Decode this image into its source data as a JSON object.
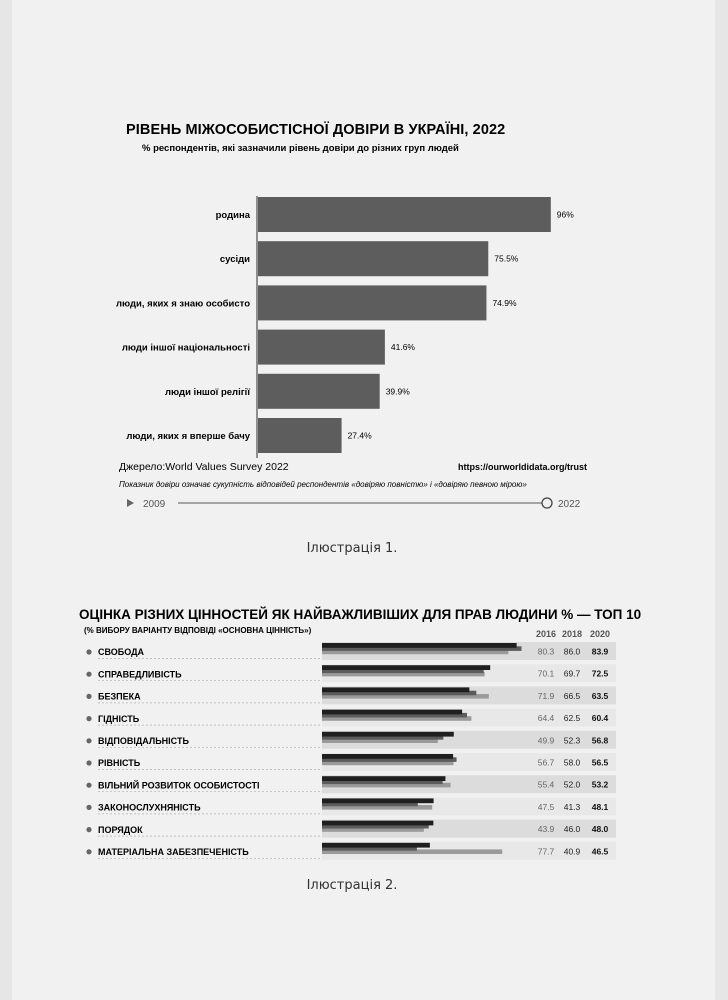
{
  "figure1": {
    "title": "РІВЕНЬ МІЖОСОБИСТІСНОЇ ДОВІРИ В УКРАЇНІ, 2022",
    "subtitle": "% респондентів, які зазначили рівень довіри до різних груп людей",
    "source": "Джерело:World Values Survey 2022",
    "url": "https://ourworldidata.org/trust",
    "note": "Показник довіри означає сукупність відповідей респондентів «довіряю повністю» і «довіряю певною мірою»",
    "timeline": {
      "start": "2009",
      "end": "2022"
    },
    "caption": "Ілюстрація 1.",
    "bar_color": "#5d5d5d"
  },
  "figure2": {
    "title": "ОЦІНКА РІЗНИХ ЦІННОСТЕЙ ЯК НАЙВАЖЛИВІШИХ ДЛЯ ПРАВ ЛЮДИНИ % — ТОП 10",
    "subtitle": "(% ВИБОРУ ВАРІАНТУ ВІДПОВІДІ «ОСНОВНА ЦІННІСТЬ»)",
    "caption": "Ілюстрація 2.",
    "series_colors": [
      "#9a9a9a",
      "#5c5c5c",
      "#1f1f1f"
    ]
  },
  "chart_data": [
    {
      "type": "bar",
      "orientation": "horizontal",
      "title": "РІВЕНЬ МІЖОСОБИСТІСНОЇ ДОВІРИ В УКРАЇНІ, 2022",
      "subtitle": "% респондентів, які зазначили рівень довіри до різних груп людей",
      "categories": [
        "родина",
        "сусіди",
        "люди, яких я знаю особисто",
        "люди іншої національності",
        "люди іншої релігії",
        "люди, яких я вперше бачу"
      ],
      "values": [
        96,
        75.5,
        74.9,
        41.6,
        39.9,
        27.4
      ],
      "labels": [
        "96%",
        "75.5%",
        "74.9%",
        "41.6%",
        "39.9%",
        "27.4%"
      ],
      "xlim": [
        0,
        100
      ],
      "grid": false
    },
    {
      "type": "bar",
      "orientation": "horizontal",
      "title": "ОЦІНКА РІЗНИХ ЦІННОСТЕЙ ЯК НАЙВАЖЛИВІШИХ ДЛЯ ПРАВ ЛЮДИНИ % — ТОП 10",
      "subtitle": "(% ВИБОРУ ВАРІАНТУ ВІДПОВІДІ «ОСНОВНА ЦІННІСТЬ»)",
      "categories": [
        "СВОБОДА",
        "СПРАВЕДЛИВІСТЬ",
        "БЕЗПЕКА",
        "ГІДНІСТЬ",
        "ВІДПОВІДАЛЬНІСТЬ",
        "РІВНІСТЬ",
        "ВІЛЬНИЙ РОЗВИТОК ОСОБИСТОСТІ",
        "ЗАКОНОСЛУХНЯНІСТЬ",
        "ПОРЯДОК",
        "МАТЕРІАЛЬНА ЗАБЕЗПЕЧЕНІСТЬ"
      ],
      "series": [
        {
          "name": "2016",
          "values": [
            80.3,
            70.1,
            71.9,
            64.4,
            49.9,
            56.7,
            55.4,
            47.5,
            43.9,
            77.7
          ]
        },
        {
          "name": "2018",
          "values": [
            86.0,
            69.7,
            66.5,
            62.5,
            52.3,
            58.0,
            52.0,
            41.3,
            46.0,
            40.9
          ]
        },
        {
          "name": "2020",
          "values": [
            83.9,
            72.5,
            63.5,
            60.4,
            56.8,
            56.5,
            53.2,
            48.1,
            48.0,
            46.5
          ]
        }
      ],
      "grid": false
    }
  ]
}
